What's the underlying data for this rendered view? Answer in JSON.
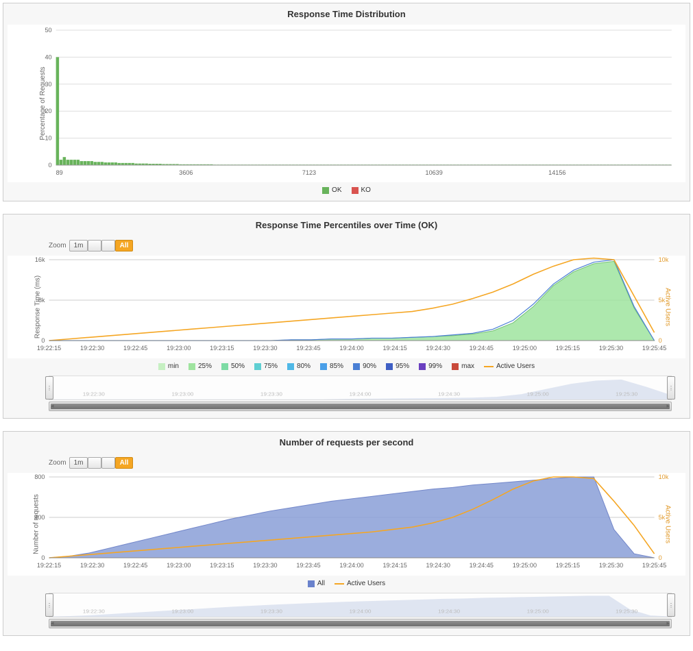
{
  "chart1": {
    "title": "Response Time Distribution",
    "type": "bar-histogram",
    "ylabel": "Percentage of Requests",
    "y_ticks": [
      0,
      10,
      20,
      30,
      40,
      50
    ],
    "ylim": [
      0,
      50
    ],
    "x_ticks": [
      "89",
      "3606",
      "7123",
      "10639",
      "14156"
    ],
    "background_color": "#ffffff",
    "grid_color": "#dddddd",
    "bar_color_ok": "#68b35b",
    "bar_color_ko": "#d9534f",
    "tick_font_size": 9,
    "label_font_size": 10,
    "bars": [
      40,
      2,
      3,
      2,
      2,
      2,
      2,
      1.5,
      1.5,
      1.5,
      1.5,
      1.2,
      1.2,
      1.2,
      1,
      1,
      1,
      1,
      0.8,
      0.8,
      0.8,
      0.8,
      0.8,
      0.6,
      0.6,
      0.6,
      0.6,
      0.5,
      0.5,
      0.5,
      0.5,
      0.4,
      0.4,
      0.4,
      0.4,
      0.4,
      0.3,
      0.3,
      0.3,
      0.3,
      0.3,
      0.3,
      0.3,
      0.3,
      0.3,
      0.3,
      0.2,
      0.2,
      0.2,
      0.2,
      0.2,
      0.2,
      0.2,
      0.2,
      0.2,
      0.2,
      0.2,
      0.2,
      0.2,
      0.2,
      0.2,
      0.2,
      0.2,
      0.2,
      0.2,
      0.2,
      0.2,
      0.2,
      0.2,
      0.2,
      0.2,
      0.2,
      0.2,
      0.2,
      0.2,
      0.2,
      0.2,
      0.2,
      0.2,
      0.2,
      0.2,
      0.2,
      0.2,
      0.2,
      0.2,
      0.2,
      0.2,
      0.2,
      0.2,
      0.2,
      0.2,
      0.2,
      0.2,
      0.2,
      0.2,
      0.2,
      0.2,
      0.2,
      0.2,
      0.2,
      0.2,
      0.2,
      0.2,
      0.2,
      0.2,
      0.2,
      0.2,
      0.2,
      0.2,
      0.2,
      0.2,
      0.2,
      0.2,
      0.2,
      0.2,
      0.2,
      0.2,
      0.2,
      0.2,
      0.2,
      0.2,
      0.2,
      0.2,
      0.2,
      0.2,
      0.2,
      0.2,
      0.2,
      0.2,
      0.2,
      0.2,
      0.2,
      0.2,
      0.2,
      0.2,
      0.2,
      0.2,
      0.2,
      0.2,
      0.2,
      0.2,
      0.2,
      0.2,
      0.2,
      0.2,
      0.2,
      0.2,
      0.2,
      0.2,
      0.2,
      0.2,
      0.2,
      0.2,
      0.2,
      0.2,
      0.2,
      0.2,
      0.2,
      0.2,
      0.2,
      0.2,
      0.2,
      0.2,
      0.2,
      0.2,
      0.2,
      0.2,
      0.2,
      0.2,
      0.2,
      0.2,
      0.2,
      0.2,
      0.2,
      0.2,
      0.2,
      0.2,
      0.2,
      0.2,
      0.2
    ],
    "legend": [
      {
        "label": "OK",
        "color": "#68b35b"
      },
      {
        "label": "KO",
        "color": "#d9534f"
      }
    ]
  },
  "chart2": {
    "title": "Response Time Percentiles over Time (OK)",
    "type": "area-line",
    "zoom_label": "Zoom",
    "zoom_buttons": [
      {
        "label": "1m",
        "active": false
      },
      {
        "label": "",
        "active": false
      },
      {
        "label": "",
        "active": false
      },
      {
        "label": "All",
        "active": true
      }
    ],
    "ylabel": "Response Time (ms)",
    "y2label": "Active Users",
    "y_ticks": [
      "0",
      "8k",
      "16k"
    ],
    "y2_ticks": [
      "0",
      "5k",
      "10k"
    ],
    "x_ticks": [
      "19:22:15",
      "19:22:30",
      "19:22:45",
      "19:23:00",
      "19:23:15",
      "19:23:30",
      "19:23:45",
      "19:24:00",
      "19:24:15",
      "19:24:30",
      "19:24:45",
      "19:25:00",
      "19:25:15",
      "19:25:30",
      "19:25:45"
    ],
    "grid_color": "#cccccc",
    "background_color": "#ffffff",
    "tick_font_size": 9,
    "label_font_size": 10,
    "series_area": {
      "color_fill": "#9fe49f",
      "color_stroke": "#5fb85f",
      "values": [
        0,
        0,
        0,
        0,
        0,
        0,
        0,
        0,
        0,
        0,
        0,
        0,
        0.01,
        0.01,
        0.02,
        0.02,
        0.03,
        0.03,
        0.04,
        0.05,
        0.06,
        0.08,
        0.12,
        0.22,
        0.42,
        0.68,
        0.85,
        0.95,
        0.98,
        0.4,
        0
      ]
    },
    "series_line_blue": {
      "color": "#4a7fd4",
      "values": [
        0,
        0,
        0,
        0,
        0,
        0,
        0,
        0,
        0,
        0,
        0,
        0,
        0.01,
        0.01,
        0.02,
        0.02,
        0.03,
        0.03,
        0.04,
        0.05,
        0.07,
        0.09,
        0.14,
        0.25,
        0.45,
        0.7,
        0.87,
        0.97,
        1.0,
        0.42,
        0
      ]
    },
    "series_active_users": {
      "color": "#f5a623",
      "values": [
        0,
        0.02,
        0.04,
        0.06,
        0.08,
        0.1,
        0.12,
        0.14,
        0.16,
        0.18,
        0.2,
        0.22,
        0.24,
        0.26,
        0.28,
        0.3,
        0.32,
        0.34,
        0.36,
        0.4,
        0.45,
        0.52,
        0.6,
        0.7,
        0.82,
        0.92,
        1.0,
        1.02,
        1.0,
        0.55,
        0.1
      ]
    },
    "legend": [
      {
        "label": "min",
        "color": "#c6f0c2",
        "type": "sw"
      },
      {
        "label": "25%",
        "color": "#9fe49f",
        "type": "sw"
      },
      {
        "label": "50%",
        "color": "#7ddba4",
        "type": "sw"
      },
      {
        "label": "75%",
        "color": "#5fcfd2",
        "type": "sw"
      },
      {
        "label": "80%",
        "color": "#4fb8e6",
        "type": "sw"
      },
      {
        "label": "85%",
        "color": "#4a9fe8",
        "type": "sw"
      },
      {
        "label": "90%",
        "color": "#4a7fd4",
        "type": "sw"
      },
      {
        "label": "95%",
        "color": "#3f5fc4",
        "type": "sw"
      },
      {
        "label": "99%",
        "color": "#6a40c0",
        "type": "sw"
      },
      {
        "label": "max",
        "color": "#c94a3b",
        "type": "sw"
      },
      {
        "label": "Active Users",
        "color": "#f5a623",
        "type": "line"
      }
    ],
    "nav_ticks": [
      "19:22:30",
      "19:23:00",
      "19:23:30",
      "19:24:00",
      "19:24:30",
      "19:25:00",
      "19:25:30"
    ],
    "nav_values": [
      0,
      0,
      0,
      0,
      0,
      0,
      0,
      0,
      0,
      0,
      0,
      0,
      0.02,
      0.03,
      0.04,
      0.05,
      0.06,
      0.08,
      0.12,
      0.25,
      0.5,
      0.75,
      0.9,
      0.95,
      0.6,
      0.2
    ]
  },
  "chart3": {
    "title": "Number of requests per second",
    "type": "area-line",
    "zoom_label": "Zoom",
    "zoom_buttons": [
      {
        "label": "1m",
        "active": false
      },
      {
        "label": "",
        "active": false
      },
      {
        "label": "",
        "active": false
      },
      {
        "label": "All",
        "active": true
      }
    ],
    "ylabel": "Number of requests",
    "y2label": "Active Users",
    "y_ticks": [
      "0",
      "400",
      "800"
    ],
    "y2_ticks": [
      "0",
      "5k",
      "10k"
    ],
    "x_ticks": [
      "19:22:15",
      "19:22:30",
      "19:22:45",
      "19:23:00",
      "19:23:15",
      "19:23:30",
      "19:23:45",
      "19:24:00",
      "19:24:15",
      "19:24:30",
      "19:24:45",
      "19:25:00",
      "19:25:15",
      "19:25:30",
      "19:25:45"
    ],
    "grid_color": "#cccccc",
    "background_color": "#ffffff",
    "tick_font_size": 9,
    "label_font_size": 10,
    "series_area": {
      "color_fill": "#8a9fd8",
      "color_stroke": "#5a72c0",
      "values": [
        0,
        0.02,
        0.06,
        0.12,
        0.18,
        0.24,
        0.3,
        0.36,
        0.42,
        0.48,
        0.53,
        0.58,
        0.62,
        0.66,
        0.7,
        0.73,
        0.76,
        0.79,
        0.82,
        0.85,
        0.87,
        0.9,
        0.92,
        0.94,
        0.96,
        0.98,
        1.0,
        1.0,
        0.35,
        0.05,
        0
      ]
    },
    "series_active_users": {
      "color": "#f5a623",
      "values": [
        0,
        0.02,
        0.04,
        0.06,
        0.08,
        0.1,
        0.12,
        0.14,
        0.16,
        0.18,
        0.2,
        0.22,
        0.24,
        0.26,
        0.28,
        0.3,
        0.32,
        0.35,
        0.38,
        0.43,
        0.5,
        0.6,
        0.72,
        0.85,
        0.95,
        1.0,
        1.0,
        0.98,
        0.7,
        0.4,
        0.05
      ]
    },
    "legend": [
      {
        "label": "All",
        "color": "#6a82cc",
        "type": "sw"
      },
      {
        "label": "Active Users",
        "color": "#f5a623",
        "type": "line"
      }
    ],
    "nav_ticks": [
      "19:22:30",
      "19:23:00",
      "19:23:30",
      "19:24:00",
      "19:24:30",
      "19:25:00",
      "19:25:30"
    ],
    "nav_values": [
      0,
      0.02,
      0.06,
      0.12,
      0.18,
      0.24,
      0.3,
      0.36,
      0.42,
      0.48,
      0.53,
      0.58,
      0.62,
      0.66,
      0.7,
      0.73,
      0.76,
      0.79,
      0.82,
      0.85,
      0.87,
      0.9,
      0.92,
      0.94,
      0.96,
      0.98,
      1.0,
      1.0,
      0.35,
      0.05,
      0
    ]
  }
}
